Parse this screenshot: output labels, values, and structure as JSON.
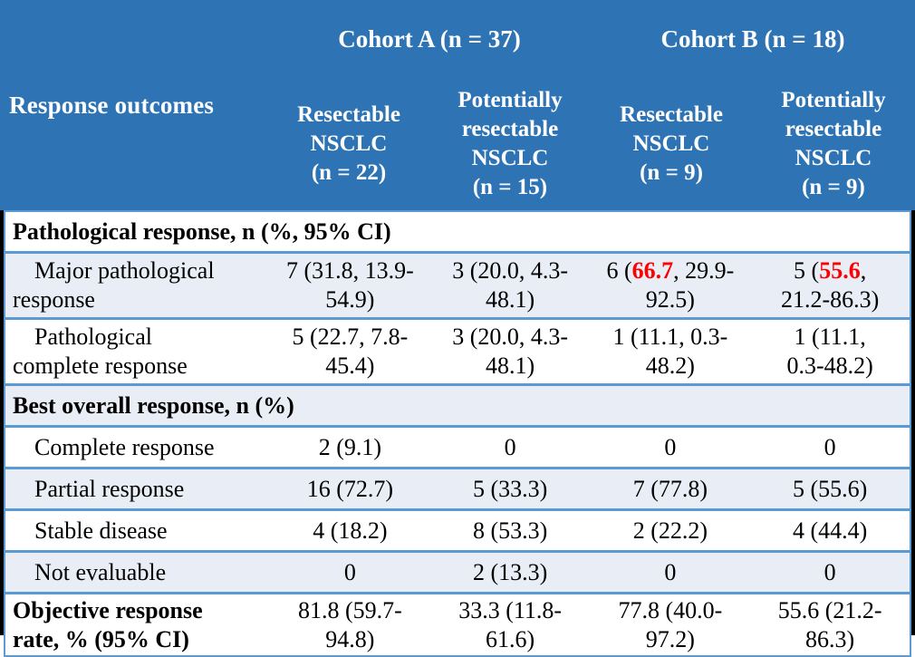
{
  "colors": {
    "background": "#000000",
    "header_bg": "#2E74B5",
    "header_text": "#FFFFFF",
    "border_blue": "#5B9BD5",
    "row_shaded_bg": "#E8EDF6",
    "row_plain_bg": "#FFFFFF",
    "body_text": "#000000",
    "highlight_red": "#FF0000"
  },
  "table": {
    "corner_label": "Response outcomes",
    "cohorts": [
      {
        "label": "Cohort A (n = 37)"
      },
      {
        "label": "Cohort B (n = 18)"
      }
    ],
    "columns": [
      {
        "label": "Resectable\nNSCLC\n(n = 22)"
      },
      {
        "label": "Potentially\nresectable\nNSCLC\n(n = 15)"
      },
      {
        "label": "Resectable\nNSCLC\n(n = 9)"
      },
      {
        "label": "Potentially\nresectable\nNSCLC\n(n = 9)"
      }
    ],
    "rows": [
      {
        "type": "section",
        "label": "Pathological response, n (%, 95% CI)"
      },
      {
        "type": "data",
        "label": "Major pathological\nresponse",
        "cells": [
          {
            "text": "7 (31.8, 13.9-\n54.9)"
          },
          {
            "text": "3 (20.0, 4.3-\n48.1)"
          },
          {
            "prefix": "6 (",
            "highlight": "66.7",
            "suffix": ", 29.9-\n92.5)"
          },
          {
            "prefix": "5 (",
            "highlight": "55.6",
            "suffix": ",\n21.2-86.3)"
          }
        ]
      },
      {
        "type": "data",
        "label": "Pathological\ncomplete response",
        "cells": [
          {
            "text": "5 (22.7, 7.8-\n45.4)"
          },
          {
            "text": "3 (20.0, 4.3-\n48.1)"
          },
          {
            "text": "1 (11.1, 0.3-\n48.2)"
          },
          {
            "text": "1 (11.1,\n0.3-48.2)"
          }
        ]
      },
      {
        "type": "section",
        "label": "Best overall response, n (%)"
      },
      {
        "type": "data",
        "label": "Complete response",
        "cells": [
          {
            "text": "2 (9.1)"
          },
          {
            "text": "0"
          },
          {
            "text": "0"
          },
          {
            "text": "0"
          }
        ]
      },
      {
        "type": "data",
        "label": "Partial response",
        "cells": [
          {
            "text": "16 (72.7)"
          },
          {
            "text": "5 (33.3)"
          },
          {
            "text": "7 (77.8)"
          },
          {
            "text": "5 (55.6)"
          }
        ]
      },
      {
        "type": "data",
        "label": "Stable disease",
        "cells": [
          {
            "text": "4 (18.2)"
          },
          {
            "text": "8 (53.3)"
          },
          {
            "text": "2 (22.2)"
          },
          {
            "text": "4 (44.4)"
          }
        ]
      },
      {
        "type": "data",
        "label": "Not evaluable",
        "cells": [
          {
            "text": "0"
          },
          {
            "text": "2 (13.3)"
          },
          {
            "text": "0"
          },
          {
            "text": "0"
          }
        ]
      },
      {
        "type": "data",
        "label": "Objective response\nrate, % (95% CI)",
        "bold": true,
        "cells": [
          {
            "text": "81.8 (59.7-\n94.8)"
          },
          {
            "text": "33.3 (11.8-\n61.6)"
          },
          {
            "text": "77.8 (40.0-\n97.2)"
          },
          {
            "text": "55.6 (21.2-\n86.3)"
          }
        ]
      }
    ]
  }
}
